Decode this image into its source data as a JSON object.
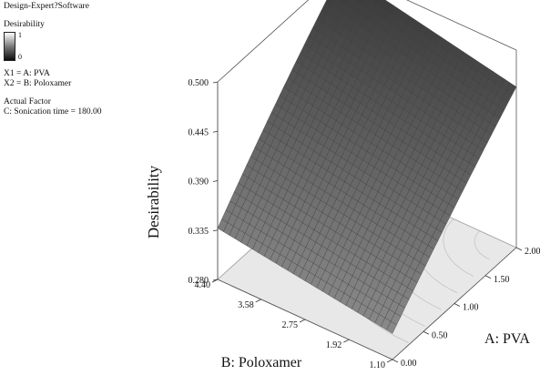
{
  "software_label": "Design-Expert?Software",
  "legend": {
    "response_title": "Desirability",
    "colorbar_max": "1",
    "colorbar_min": "0",
    "x1_label": "X1 = A: PVA",
    "x2_label": "X2 = B: Poloxamer",
    "actual_factor_title": "Actual Factor",
    "actual_factor_value": "C: Sonication time = 180.00"
  },
  "chart_data": {
    "type": "surface3d",
    "zlabel": "Desirability",
    "xlabel": "A: PVA",
    "ylabel": "B: Poloxamer",
    "z_ticks": [
      "0.280",
      "0.335",
      "0.390",
      "0.445",
      "0.500"
    ],
    "x_ticks": [
      "0.00",
      "0.50",
      "1.00",
      "1.50",
      "2.00"
    ],
    "y_ticks": [
      "1.10",
      "1.92",
      "2.75",
      "3.58",
      "4.40"
    ],
    "zlim": [
      0.28,
      0.5
    ],
    "xlim": [
      0,
      2
    ],
    "ylim": [
      1.1,
      4.4
    ],
    "surface_corners": {
      "A0_B4.40": 0.337,
      "A0_B1.10": 0.309,
      "A2_B1.10": 0.459,
      "A2_B4.40": 0.499
    },
    "surface_color": "#3a3a3a",
    "floor_color": "#e8e8e8"
  }
}
